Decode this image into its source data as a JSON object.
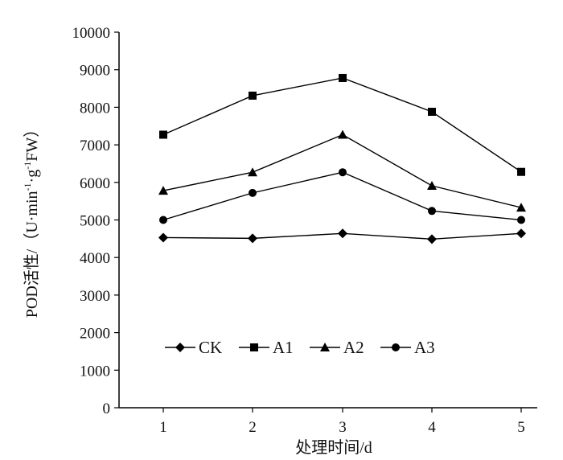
{
  "chart_data": {
    "type": "line",
    "x": [
      1,
      2,
      3,
      4,
      5
    ],
    "xlabel": "处理时间/d",
    "ylabel_prefix": "POD活性/（U·min",
    "ylabel_sup1": "-1",
    "ylabel_mid": "·g",
    "ylabel_sup2": "-1",
    "ylabel_suffix": "FW）",
    "ylim": [
      0,
      10000
    ],
    "yticks": [
      0,
      1000,
      2000,
      3000,
      4000,
      5000,
      6000,
      7000,
      8000,
      9000,
      10000
    ],
    "xticks": [
      1,
      2,
      3,
      4,
      5
    ],
    "grid": false,
    "legend_position": "bottom-left, horizontal",
    "series": [
      {
        "name": "CK",
        "marker": "diamond",
        "values": [
          4530,
          4510,
          4640,
          4490,
          4640
        ]
      },
      {
        "name": "A1",
        "marker": "square",
        "values": [
          7270,
          8310,
          8780,
          7880,
          6280
        ]
      },
      {
        "name": "A2",
        "marker": "triangle",
        "values": [
          5780,
          6270,
          7270,
          5910,
          5330
        ]
      },
      {
        "name": "A3",
        "marker": "circle",
        "values": [
          5000,
          5720,
          6270,
          5240,
          5000
        ]
      }
    ],
    "color": "#000000"
  }
}
